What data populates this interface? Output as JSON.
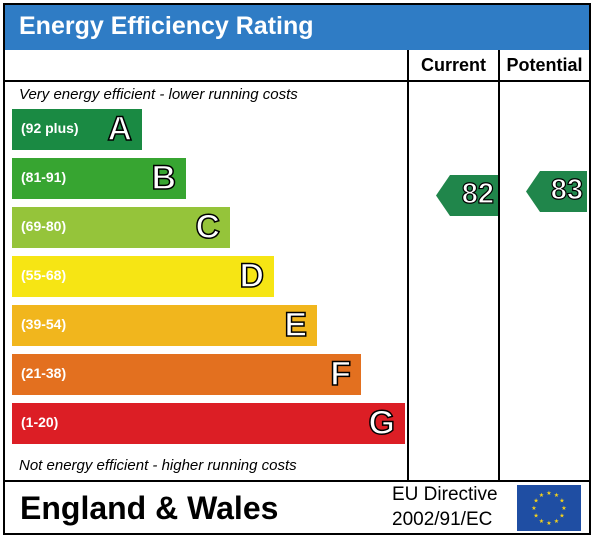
{
  "title": "Energy Efficiency Rating",
  "columns": {
    "current": "Current",
    "potential": "Potential"
  },
  "notes": {
    "top": "Very energy efficient - lower running costs",
    "bottom": "Not energy efficient - higher running costs"
  },
  "chart_data": {
    "type": "bar",
    "title": "Energy Efficiency Rating",
    "categories": [
      "A",
      "B",
      "C",
      "D",
      "E",
      "F",
      "G"
    ],
    "ranges": [
      "(92 plus)",
      "(81-91)",
      "(69-80)",
      "(55-68)",
      "(39-54)",
      "(21-38)",
      "(1-20)"
    ],
    "colors": [
      "#1a8a43",
      "#37a531",
      "#95c43a",
      "#f6e514",
      "#f1b61d",
      "#e3701f",
      "#dc1e25"
    ],
    "current": {
      "value": 82,
      "band": "B",
      "color": "#20864b"
    },
    "potential": {
      "value": 83,
      "band": "B",
      "color": "#20864b"
    }
  },
  "footer": {
    "region": "England & Wales",
    "directive_line1": "EU Directive",
    "directive_line2": "2002/91/EC"
  },
  "colors": {
    "title_bar": "#2f7cc5",
    "flag_blue": "#1f4ea3",
    "flag_star": "#f6d21b"
  }
}
